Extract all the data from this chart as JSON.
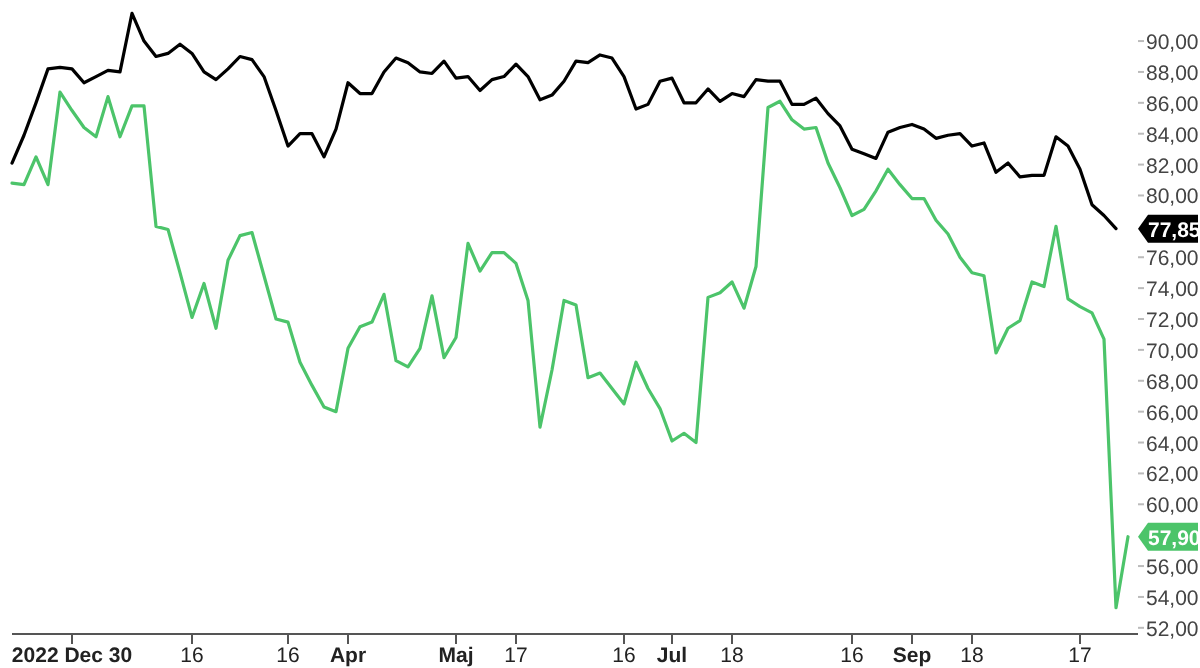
{
  "chart_data": {
    "type": "line",
    "legend": false,
    "grid": false,
    "marker": "none",
    "line_style": "solid",
    "categories": [
      null,
      null,
      null,
      null,
      null,
      "2022 Dec 30",
      null,
      null,
      null,
      null,
      null,
      null,
      null,
      null,
      null,
      "16",
      null,
      null,
      null,
      null,
      null,
      null,
      null,
      "16",
      null,
      null,
      null,
      null,
      "Apr",
      null,
      null,
      null,
      null,
      null,
      null,
      null,
      null,
      "Maj",
      null,
      null,
      null,
      null,
      "17",
      null,
      null,
      null,
      null,
      null,
      null,
      null,
      null,
      "16",
      null,
      null,
      null,
      "Jul",
      null,
      null,
      null,
      null,
      "18",
      null,
      null,
      null,
      null,
      null,
      null,
      null,
      null,
      null,
      "16",
      null,
      null,
      null,
      null,
      "Sep",
      null,
      null,
      null,
      null,
      "18",
      null,
      null,
      null,
      null,
      null,
      null,
      null,
      null,
      "17",
      null,
      null,
      null,
      null
    ],
    "ylim": [
      51.6,
      92.4
    ],
    "yticks": [
      {
        "value": 52,
        "label": "52,00"
      },
      {
        "value": 54,
        "label": "54,00"
      },
      {
        "value": 56,
        "label": "56,00"
      },
      {
        "value": 60,
        "label": "60,00"
      },
      {
        "value": 62,
        "label": "62,00"
      },
      {
        "value": 64,
        "label": "64,00"
      },
      {
        "value": 66,
        "label": "66,00"
      },
      {
        "value": 68,
        "label": "68,00"
      },
      {
        "value": 70,
        "label": "70,00"
      },
      {
        "value": 72,
        "label": "72,00"
      },
      {
        "value": 74,
        "label": "74,00"
      },
      {
        "value": 76,
        "label": "76,00"
      },
      {
        "value": 80,
        "label": "80,00"
      },
      {
        "value": 82,
        "label": "82,00"
      },
      {
        "value": 84,
        "label": "84,00"
      },
      {
        "value": 86,
        "label": "86,00"
      },
      {
        "value": 88,
        "label": "88,00"
      },
      {
        "value": 90,
        "label": "90,00"
      }
    ],
    "series": [
      {
        "color": "#000000",
        "values": [
          82.1,
          83.9,
          86.0,
          88.2,
          88.3,
          88.2,
          87.3,
          87.7,
          88.1,
          88.0,
          91.8,
          90.0,
          89.0,
          89.2,
          89.8,
          89.2,
          88.0,
          87.5,
          88.2,
          89.0,
          88.8,
          87.7,
          85.5,
          83.2,
          84.0,
          84.0,
          82.5,
          84.3,
          87.3,
          86.6,
          86.6,
          88.0,
          88.9,
          88.6,
          88.0,
          87.9,
          88.7,
          87.6,
          87.7,
          86.8,
          87.5,
          87.7,
          88.5,
          87.7,
          86.2,
          86.5,
          87.4,
          88.7,
          88.6,
          89.1,
          88.9,
          87.7,
          85.6,
          85.9,
          87.4,
          87.6,
          86.0,
          86.0,
          86.9,
          86.1,
          86.6,
          86.4,
          87.5,
          87.4,
          87.4,
          85.9,
          85.9,
          86.3,
          85.3,
          84.5,
          83.0,
          82.7,
          82.4,
          84.1,
          84.4,
          84.6,
          84.3,
          83.7,
          83.9,
          84.0,
          83.2,
          83.4,
          81.5,
          82.1,
          81.2,
          81.3,
          81.3,
          83.8,
          83.2,
          81.7,
          79.4,
          78.7,
          77.85,
          null
        ],
        "value_labels": [
          null,
          null,
          null,
          null,
          null,
          null,
          null,
          null,
          null,
          null,
          null,
          null,
          null,
          null,
          null,
          null,
          null,
          null,
          null,
          null,
          null,
          null,
          null,
          null,
          null,
          null,
          null,
          null,
          null,
          null,
          null,
          null,
          null,
          null,
          null,
          null,
          null,
          null,
          null,
          null,
          null,
          null,
          null,
          null,
          null,
          null,
          null,
          null,
          null,
          null,
          null,
          null,
          null,
          null,
          null,
          null,
          null,
          null,
          null,
          null,
          null,
          null,
          null,
          null,
          null,
          null,
          null,
          null,
          null,
          null,
          null,
          null,
          null,
          null,
          null,
          null,
          null,
          null,
          null,
          null,
          null,
          null,
          null,
          null,
          null,
          null,
          null,
          null,
          null,
          null,
          null,
          null,
          "77,85",
          null
        ]
      },
      {
        "color": "#4cc46a",
        "values": [
          80.8,
          80.7,
          82.5,
          80.7,
          86.7,
          85.5,
          84.4,
          83.8,
          86.4,
          83.8,
          85.8,
          85.8,
          78.0,
          77.8,
          75.0,
          72.1,
          74.3,
          71.4,
          75.8,
          77.4,
          77.6,
          74.8,
          72.0,
          71.8,
          69.2,
          67.7,
          66.3,
          66.0,
          70.1,
          71.5,
          71.8,
          73.6,
          69.3,
          68.9,
          70.1,
          73.5,
          69.5,
          70.8,
          76.9,
          75.1,
          76.3,
          76.3,
          75.6,
          73.2,
          65.0,
          68.7,
          73.2,
          72.9,
          68.2,
          68.5,
          67.5,
          66.5,
          69.2,
          67.5,
          66.2,
          64.1,
          64.6,
          64.0,
          73.4,
          73.7,
          74.4,
          72.7,
          75.4,
          85.7,
          86.1,
          84.9,
          84.3,
          84.4,
          82.1,
          80.5,
          78.7,
          79.1,
          80.3,
          81.7,
          80.7,
          79.8,
          79.8,
          78.4,
          77.5,
          76.0,
          75.0,
          74.8,
          69.8,
          71.4,
          71.9,
          74.4,
          74.1,
          78.0,
          73.3,
          72.8,
          72.4,
          70.7,
          53.3,
          57.9
        ],
        "value_labels": [
          null,
          null,
          null,
          null,
          null,
          null,
          null,
          null,
          null,
          null,
          null,
          null,
          null,
          null,
          null,
          null,
          null,
          null,
          null,
          null,
          null,
          null,
          null,
          null,
          null,
          null,
          null,
          null,
          null,
          null,
          null,
          null,
          null,
          null,
          null,
          null,
          null,
          null,
          null,
          null,
          null,
          null,
          null,
          null,
          null,
          null,
          null,
          null,
          null,
          null,
          null,
          null,
          null,
          null,
          null,
          null,
          null,
          null,
          null,
          null,
          null,
          null,
          null,
          null,
          null,
          null,
          null,
          null,
          null,
          null,
          null,
          null,
          null,
          null,
          null,
          null,
          null,
          null,
          null,
          null,
          null,
          null,
          null,
          null,
          null,
          null,
          null,
          null,
          null,
          null,
          null,
          null,
          null,
          "57,90"
        ]
      }
    ]
  }
}
